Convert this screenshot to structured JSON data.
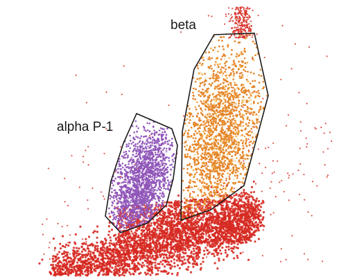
{
  "chart_data": {
    "type": "scatter",
    "title": "",
    "xlabel": "",
    "ylabel": "",
    "grid": false,
    "legend": "none",
    "gates": [
      {
        "name": "alpha P-1",
        "color": "#8f55b8"
      },
      {
        "name": "beta",
        "color": "#e5862a"
      }
    ],
    "background_population": {
      "color": "#d62a22"
    }
  }
}
